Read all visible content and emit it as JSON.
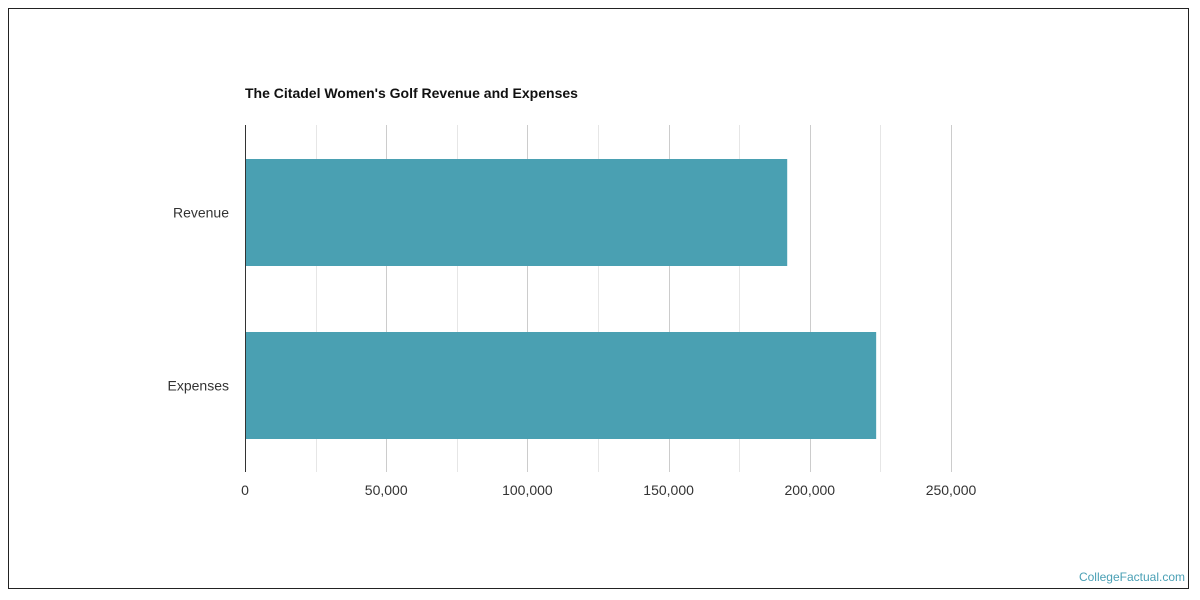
{
  "chart_data": {
    "type": "bar",
    "orientation": "horizontal",
    "title": "The Citadel Women's Golf Revenue and Expenses",
    "categories": [
      "Revenue",
      "Expenses"
    ],
    "values": [
      192000,
      223500
    ],
    "xlim": [
      0,
      275000
    ],
    "x_ticks": [
      0,
      50000,
      100000,
      150000,
      200000,
      250000
    ],
    "x_tick_labels": [
      "0",
      "50,000",
      "100,000",
      "150,000",
      "200,000",
      "250,000"
    ],
    "bar_color": "#4aa0b2",
    "grid": true
  },
  "credit": "CollegeFactual.com"
}
